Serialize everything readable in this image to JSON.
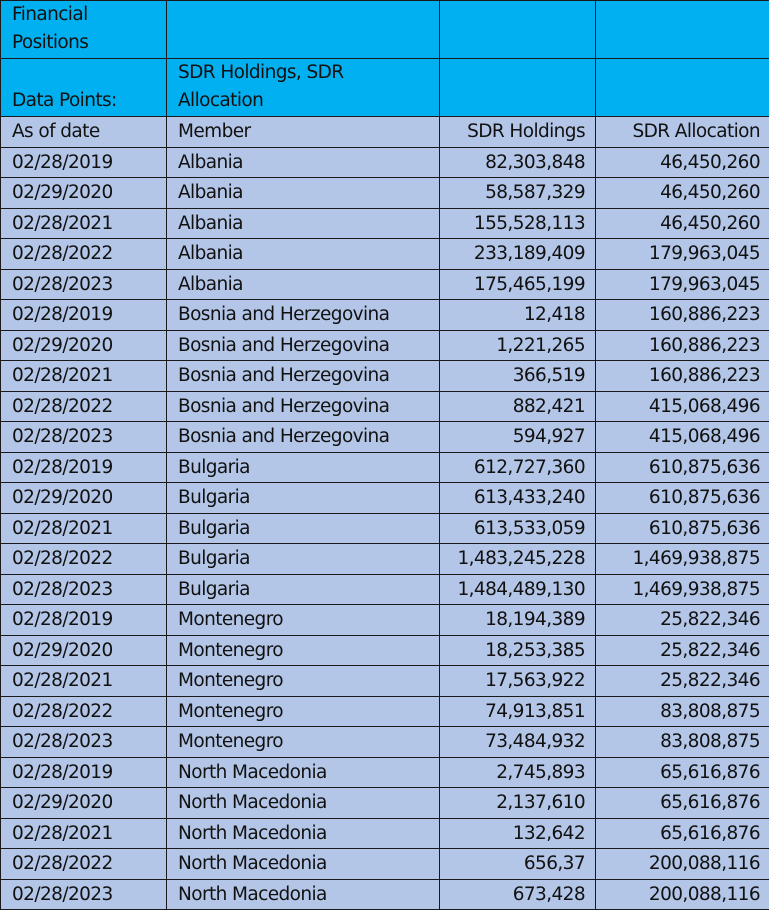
{
  "title_rows": {
    "title": "Financial Positions",
    "data_points_label": "Data Points:",
    "data_points_value": "SDR Holdings, SDR Allocation"
  },
  "colors": {
    "header_bg": "#00b0f0",
    "body_bg": "#b4c6e7"
  },
  "columns": [
    "As of date",
    "Member",
    "SDR Holdings",
    "SDR Allocation"
  ],
  "rows": [
    [
      "02/28/2019",
      "Albania",
      "82,303,848",
      "46,450,260"
    ],
    [
      "02/29/2020",
      "Albania",
      "58,587,329",
      "46,450,260"
    ],
    [
      "02/28/2021",
      "Albania",
      "155,528,113",
      "46,450,260"
    ],
    [
      "02/28/2022",
      "Albania",
      "233,189,409",
      "179,963,045"
    ],
    [
      "02/28/2023",
      "Albania",
      "175,465,199",
      "179,963,045"
    ],
    [
      "02/28/2019",
      "Bosnia and Herzegovina",
      "12,418",
      "160,886,223"
    ],
    [
      "02/29/2020",
      "Bosnia and Herzegovina",
      "1,221,265",
      "160,886,223"
    ],
    [
      "02/28/2021",
      "Bosnia and Herzegovina",
      "366,519",
      "160,886,223"
    ],
    [
      "02/28/2022",
      "Bosnia and Herzegovina",
      "882,421",
      "415,068,496"
    ],
    [
      "02/28/2023",
      "Bosnia and Herzegovina",
      "594,927",
      "415,068,496"
    ],
    [
      "02/28/2019",
      "Bulgaria",
      "612,727,360",
      "610,875,636"
    ],
    [
      "02/29/2020",
      "Bulgaria",
      "613,433,240",
      "610,875,636"
    ],
    [
      "02/28/2021",
      "Bulgaria",
      "613,533,059",
      "610,875,636"
    ],
    [
      "02/28/2022",
      "Bulgaria",
      "1,483,245,228",
      "1,469,938,875"
    ],
    [
      "02/28/2023",
      "Bulgaria",
      "1,484,489,130",
      "1,469,938,875"
    ],
    [
      "02/28/2019",
      "Montenegro",
      "18,194,389",
      "25,822,346"
    ],
    [
      "02/29/2020",
      "Montenegro",
      "18,253,385",
      "25,822,346"
    ],
    [
      "02/28/2021",
      "Montenegro",
      "17,563,922",
      "25,822,346"
    ],
    [
      "02/28/2022",
      "Montenegro",
      "74,913,851",
      "83,808,875"
    ],
    [
      "02/28/2023",
      "Montenegro",
      "73,484,932",
      "83,808,875"
    ],
    [
      "02/28/2019",
      "North Macedonia",
      "2,745,893",
      "65,616,876"
    ],
    [
      "02/29/2020",
      "North Macedonia",
      "2,137,610",
      "65,616,876"
    ],
    [
      "02/28/2021",
      "North Macedonia",
      "132,642",
      "65,616,876"
    ],
    [
      "02/28/2022",
      "North Macedonia",
      "656,37",
      "200,088,116"
    ],
    [
      "02/28/2023",
      "North Macedonia",
      "673,428",
      "200,088,116"
    ]
  ]
}
